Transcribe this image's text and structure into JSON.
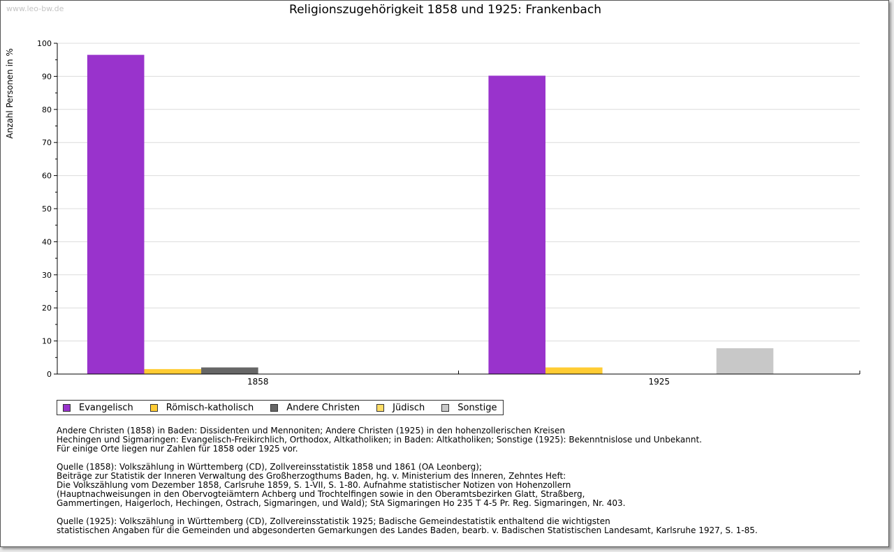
{
  "watermark": "www.leo-bw.de",
  "chart_data": {
    "type": "bar",
    "title": "Religionszugehörigkeit 1858 und 1925: Frankenbach",
    "xlabel": "",
    "ylabel": "Anzahl Personen in %",
    "ylim": [
      0,
      100
    ],
    "yticks": [
      0,
      10,
      20,
      30,
      40,
      50,
      60,
      70,
      80,
      90,
      100
    ],
    "grid": true,
    "legend_position": "bottom-left",
    "categories": [
      "1858",
      "1925"
    ],
    "series": [
      {
        "name": "Evangelisch",
        "color": "#9933cc",
        "values": [
          96.5,
          90.2
        ]
      },
      {
        "name": "Römisch-katholisch",
        "color": "#ffcc33",
        "values": [
          1.5,
          2.0
        ]
      },
      {
        "name": "Andere Christen",
        "color": "#666666",
        "values": [
          2.0,
          0
        ]
      },
      {
        "name": "Jüdisch",
        "color": "#ffdd66",
        "values": [
          0,
          0
        ]
      },
      {
        "name": "Sonstige",
        "color": "#c8c8c8",
        "values": [
          0,
          7.8
        ]
      }
    ]
  },
  "notes": {
    "paragraphs": [
      [
        "Andere Christen (1858) in Baden: Dissidenten und Mennoniten; Andere Christen (1925) in den hohenzollerischen Kreisen",
        "Hechingen und Sigmaringen: Evangelisch-Freikirchlich, Orthodox, Altkatholiken; in Baden: Altkatholiken; Sonstige (1925): Bekenntnislose und Unbekannt.",
        "Für einige Orte liegen nur Zahlen für 1858 oder 1925 vor."
      ],
      [
        "Quelle (1858): Volkszählung in Württemberg (CD), Zollvereinsstatistik 1858 und 1861 (OA Leonberg);",
        "Beiträge zur Statistik der Inneren Verwaltung des Großherzogthums Baden, hg. v. Ministerium des Inneren, Zehntes Heft:",
        "Die Volkszählung vom Dezember 1858, Carlsruhe 1859, S. 1-VII, S. 1-80. Aufnahme statistischer Notizen von Hohenzollern",
        "(Hauptnachweisungen in den Obervogteiämtern Achberg und Trochtelfingen sowie in den Oberamtsbezirken Glatt, Straßberg,",
        "Gammertingen, Haigerloch, Hechingen, Ostrach, Sigmaringen, und Wald); StA Sigmaringen Ho 235 T 4-5 Pr. Reg. Sigmaringen, Nr. 403."
      ],
      [
        "Quelle (1925): Volkszählung in Württemberg (CD), Zollvereinsstatistik 1925; Badische Gemeindestatistik enthaltend die wichtigsten",
        "statistischen Angaben für die Gemeinden und abgesonderten Gemarkungen des Landes Baden, bearb. v. Badischen Statistischen Landesamt, Karlsruhe 1927, S. 1-85."
      ]
    ]
  }
}
